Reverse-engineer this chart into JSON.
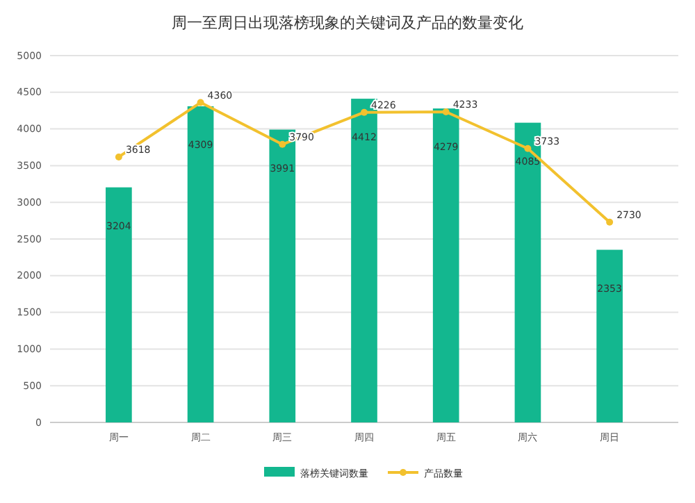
{
  "chart_data": {
    "type": "bar",
    "title": "周一至周日出现落榜现象的关键词及产品的数量变化",
    "categories": [
      "周一",
      "周二",
      "周三",
      "周四",
      "周五",
      "周六",
      "周日"
    ],
    "series": [
      {
        "name": "落榜关键词数量",
        "color": "#13b78f",
        "values": [
          3204,
          4309,
          3991,
          4412,
          4279,
          4085,
          2353
        ]
      },
      {
        "name": "产品数量",
        "type": "line",
        "color": "#f2c12e",
        "values": [
          3618,
          4360,
          3790,
          4226,
          4233,
          3733,
          2730
        ]
      }
    ],
    "ylim": [
      0,
      5000
    ],
    "yticks": [
      0,
      500,
      1000,
      1500,
      2000,
      2500,
      3000,
      3500,
      4000,
      4500,
      5000
    ],
    "grid": "y",
    "legend": "bottom",
    "data_labels": true,
    "marker": "circle"
  }
}
